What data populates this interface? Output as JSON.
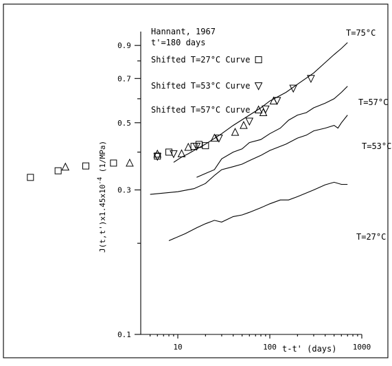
{
  "chart_data": {
    "type": "scatter",
    "title": "Hannant, 1967",
    "subtitle": "t'=180 days",
    "xlabel": "t-t' (days)",
    "ylabel": "J(t,t')x1.45x10^-4 (1/MPa)",
    "ylabel_parts": {
      "main": "J(t,t')x1.45x10",
      "exp": "-4",
      "tail": " (1/MPa)"
    },
    "x_scale": "log",
    "y_scale": "log",
    "xlim": [
      4,
      1000
    ],
    "ylim": [
      0.1,
      1.0
    ],
    "x_ticks": [
      10,
      100,
      1000
    ],
    "y_ticks": [
      0.1,
      0.3,
      0.5,
      0.7,
      0.9
    ],
    "grid": false,
    "legend": [
      {
        "label": "Shifted T=27°C Curve",
        "marker": "square"
      },
      {
        "label": "Shifted T=53°C Curve",
        "marker": "triangle-down"
      },
      {
        "label": "Shifted T=57°C Curve",
        "marker": "triangle-up"
      }
    ],
    "curves": [
      {
        "name": "T=75°C",
        "x": [
          9,
          11,
          13,
          15,
          20,
          30,
          40,
          60,
          80,
          100,
          150,
          200,
          300,
          400,
          500,
          600,
          700
        ],
        "y": [
          0.37,
          0.385,
          0.395,
          0.405,
          0.425,
          0.46,
          0.49,
          0.53,
          0.56,
          0.59,
          0.63,
          0.67,
          0.73,
          0.79,
          0.84,
          0.88,
          0.92
        ]
      },
      {
        "name": "T=57°C",
        "x": [
          16,
          20,
          25,
          30,
          40,
          50,
          60,
          80,
          100,
          130,
          160,
          200,
          250,
          300,
          400,
          500,
          600,
          700
        ],
        "y": [
          0.33,
          0.34,
          0.35,
          0.38,
          0.4,
          0.41,
          0.43,
          0.44,
          0.46,
          0.48,
          0.51,
          0.53,
          0.54,
          0.56,
          0.58,
          0.6,
          0.63,
          0.66
        ]
      },
      {
        "name": "T=53°C",
        "x": [
          5,
          10,
          15,
          20,
          25,
          30,
          40,
          50,
          60,
          80,
          100,
          150,
          200,
          250,
          300,
          400,
          500,
          550,
          600,
          700
        ],
        "y": [
          0.29,
          0.296,
          0.303,
          0.315,
          0.335,
          0.35,
          0.358,
          0.365,
          0.375,
          0.39,
          0.405,
          0.425,
          0.445,
          0.455,
          0.47,
          0.48,
          0.49,
          0.48,
          0.5,
          0.53
        ]
      },
      {
        "name": "T=27°C",
        "x": [
          8,
          12,
          16,
          20,
          25,
          30,
          40,
          50,
          60,
          80,
          100,
          130,
          160,
          200,
          300,
          400,
          500,
          600,
          700
        ],
        "y": [
          0.204,
          0.215,
          0.225,
          0.232,
          0.238,
          0.235,
          0.245,
          0.248,
          0.253,
          0.262,
          0.27,
          0.278,
          0.278,
          0.285,
          0.3,
          0.312,
          0.318,
          0.313,
          0.313
        ]
      }
    ],
    "markers": {
      "square": {
        "x": [
          0.25,
          0.5,
          1,
          2,
          6,
          8,
          15,
          17,
          20
        ],
        "y": [
          0.33,
          0.347,
          0.36,
          0.368,
          0.388,
          0.4,
          0.418,
          0.424,
          0.42
        ]
      },
      "triangle-down": {
        "x": [
          6,
          9,
          16,
          28,
          60,
          90,
          120,
          180,
          280
        ],
        "y": [
          0.387,
          0.395,
          0.418,
          0.445,
          0.506,
          0.555,
          0.592,
          0.65,
          0.7
        ]
      },
      "triangle-up": {
        "x": [
          0.6,
          3,
          6,
          11,
          13,
          25,
          42,
          52,
          85,
          110
        ],
        "y": [
          0.357,
          0.368,
          0.394,
          0.395,
          0.415,
          0.445,
          0.465,
          0.49,
          0.54,
          0.59
        ]
      }
    }
  }
}
